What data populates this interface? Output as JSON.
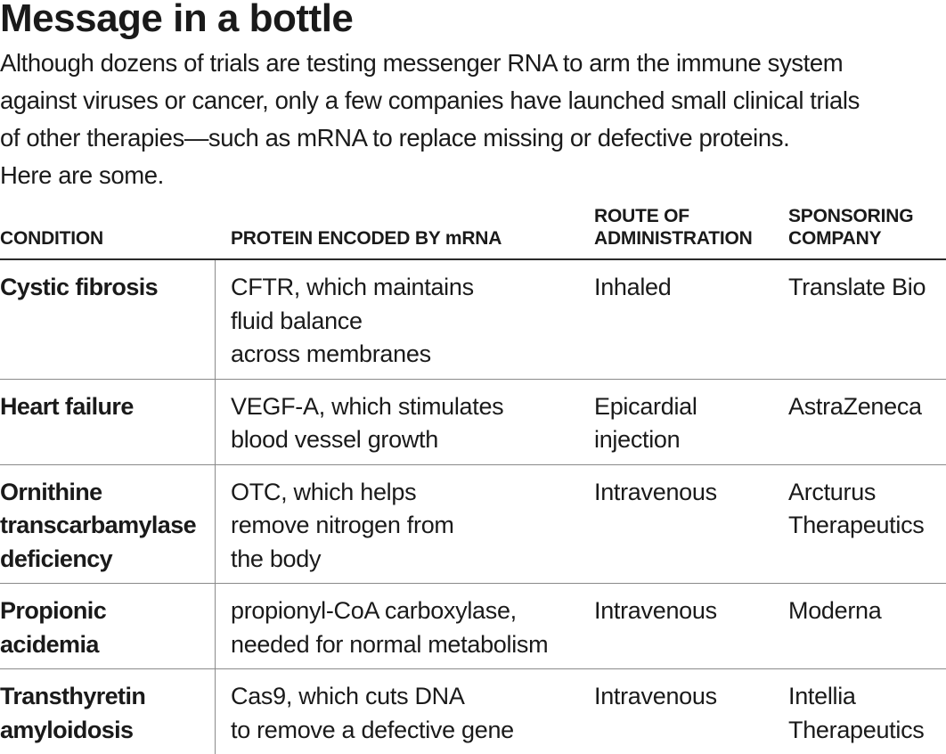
{
  "title": "Message in a bottle",
  "intro_lines": [
    "Although dozens of trials are testing messenger RNA to arm the immune system",
    "against viruses or cancer, only a few companies have launched small clinical trials",
    "of other therapies—such as mRNA to replace missing or defective proteins.",
    "Here are some."
  ],
  "table": {
    "headers": {
      "condition": [
        "CONDITION"
      ],
      "protein": [
        "PROTEIN ENCODED BY mRNA"
      ],
      "route": [
        "ROUTE OF",
        "ADMINISTRATION"
      ],
      "sponsor": [
        "SPONSORING",
        "COMPANY"
      ]
    },
    "rows": [
      {
        "condition": [
          "Cystic fibrosis"
        ],
        "protein": [
          "CFTR, which maintains",
          "fluid balance",
          "across membranes"
        ],
        "route": [
          "Inhaled"
        ],
        "sponsor": [
          "Translate Bio"
        ]
      },
      {
        "condition": [
          "Heart failure"
        ],
        "protein": [
          "VEGF-A, which stimulates",
          "blood vessel growth"
        ],
        "route": [
          "Epicardial",
          "injection"
        ],
        "sponsor": [
          "AstraZeneca"
        ]
      },
      {
        "condition": [
          "Ornithine",
          "transcarbamylase",
          "deficiency"
        ],
        "protein": [
          "OTC, which helps",
          "remove nitrogen from",
          "the body"
        ],
        "route": [
          "Intravenous"
        ],
        "sponsor": [
          "Arcturus",
          "Therapeutics"
        ]
      },
      {
        "condition": [
          "Propionic",
          "acidemia"
        ],
        "protein": [
          "propionyl-CoA carboxylase,",
          "needed for normal metabolism"
        ],
        "route": [
          "Intravenous"
        ],
        "sponsor": [
          "Moderna"
        ]
      },
      {
        "condition": [
          "Transthyretin",
          "amyloidosis"
        ],
        "protein": [
          "Cas9, which cuts DNA",
          "to remove a defective gene"
        ],
        "route": [
          "Intravenous"
        ],
        "sponsor": [
          "Intellia",
          "Therapeutics"
        ]
      }
    ]
  }
}
